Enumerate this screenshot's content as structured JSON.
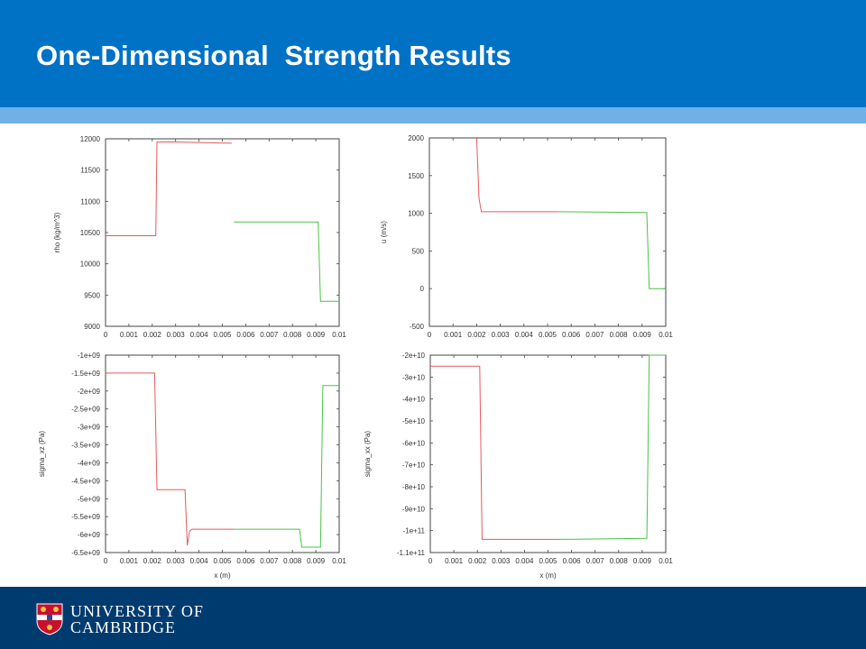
{
  "slide": {
    "title": "One-Dimensional  Strength Results"
  },
  "footer": {
    "line1": "UNIVERSITY OF",
    "line2": "CAMBRIDGE"
  },
  "colors": {
    "header": "#0072c6",
    "stripe": "#6fb0e6",
    "footer": "#003b6f",
    "series_red": "#e8585b",
    "series_green": "#47c447"
  },
  "chart_data": [
    {
      "type": "line",
      "ylabel": "rho (kg/m^3)",
      "xlabel": "",
      "xlim": [
        0,
        0.01
      ],
      "ylim": [
        9000,
        12000
      ],
      "xticks": [
        "0",
        "0.001",
        "0.002",
        "0.003",
        "0.004",
        "0.005",
        "0.006",
        "0.007",
        "0.008",
        "0.009",
        "0.01"
      ],
      "yticks": [
        "9000",
        "9500",
        "10000",
        "10500",
        "11000",
        "11500",
        "12000"
      ],
      "series": [
        {
          "color": "#e8585b",
          "x": [
            0,
            0.00215,
            0.0022,
            0.003,
            0.0054
          ],
          "y": [
            10450,
            10450,
            11950,
            11950,
            11930
          ]
        },
        {
          "color": "#47c447",
          "x": [
            0.0055,
            0.0091,
            0.0092,
            0.01
          ],
          "y": [
            10670,
            10670,
            9400,
            9400
          ]
        }
      ]
    },
    {
      "type": "line",
      "ylabel": "u (m/s)",
      "xlabel": "",
      "xlim": [
        0,
        0.01
      ],
      "ylim": [
        -500,
        2000
      ],
      "xticks": [
        "0",
        "0.001",
        "0.002",
        "0.003",
        "0.004",
        "0.005",
        "0.006",
        "0.007",
        "0.008",
        "0.009",
        "0.01"
      ],
      "yticks": [
        "-500",
        "0",
        "500",
        "1000",
        "1500",
        "2000"
      ],
      "series": [
        {
          "color": "#e8585b",
          "x": [
            0.002,
            0.0021,
            0.0022,
            0.0055
          ],
          "y": [
            2000,
            1200,
            1020,
            1020
          ]
        },
        {
          "color": "#47c447",
          "x": [
            0.0055,
            0.0092,
            0.0093,
            0.01
          ],
          "y": [
            1020,
            1010,
            0,
            0
          ]
        }
      ]
    },
    {
      "type": "line",
      "ylabel": "sigma_xz (Pa)",
      "xlabel": "x (m)",
      "xlim": [
        0,
        0.01
      ],
      "ylim": [
        -6500000000.0,
        -1000000000.0
      ],
      "xticks": [
        "0",
        "0.001",
        "0.002",
        "0.003",
        "0.004",
        "0.005",
        "0.006",
        "0.007",
        "0.008",
        "0.009",
        "0.01"
      ],
      "yticks": [
        "-1e+09",
        "-1.5e+09",
        "-2e+09",
        "-2.5e+09",
        "-3e+09",
        "-3.5e+09",
        "-4e+09",
        "-4.5e+09",
        "-5e+09",
        "-5.5e+09",
        "-6e+09",
        "-6.5e+09"
      ],
      "series": [
        {
          "color": "#e8585b",
          "x": [
            0,
            0.0021,
            0.0022,
            0.0034,
            0.0035,
            0.0036,
            0.0037,
            0.0055
          ],
          "y": [
            -1500000000.0,
            -1500000000.0,
            -4750000000.0,
            -4750000000.0,
            -6300000000.0,
            -5900000000.0,
            -5850000000.0,
            -5850000000.0
          ]
        },
        {
          "color": "#47c447",
          "x": [
            0.0055,
            0.0083,
            0.0084,
            0.0092,
            0.0093,
            0.01
          ],
          "y": [
            -5850000000.0,
            -5850000000.0,
            -6350000000.0,
            -6350000000.0,
            -1850000000.0,
            -1850000000.0
          ]
        }
      ]
    },
    {
      "type": "line",
      "ylabel": "sigma_xx (Pa)",
      "xlabel": "x (m)",
      "xlim": [
        0,
        0.01
      ],
      "ylim": [
        -110000000000.0,
        -20000000000.0
      ],
      "xticks": [
        "0",
        "0.001",
        "0.002",
        "0.003",
        "0.004",
        "0.005",
        "0.006",
        "0.007",
        "0.008",
        "0.009",
        "0.01"
      ],
      "yticks": [
        "-2e+10",
        "-3e+10",
        "-4e+10",
        "-5e+10",
        "-6e+10",
        "-7e+10",
        "-8e+10",
        "-9e+10",
        "-1e+11",
        "-1.1e+11"
      ],
      "series": [
        {
          "color": "#e8585b",
          "x": [
            0,
            0.0021,
            0.0022,
            0.0055
          ],
          "y": [
            -25000000000.0,
            -25000000000.0,
            -104000000000.0,
            -104000000000.0
          ]
        },
        {
          "color": "#47c447",
          "x": [
            0.0055,
            0.0092,
            0.0093,
            0.01
          ],
          "y": [
            -104000000000.0,
            -103500000000.0,
            -20000000000.0,
            -20000000000.0
          ]
        }
      ]
    }
  ]
}
